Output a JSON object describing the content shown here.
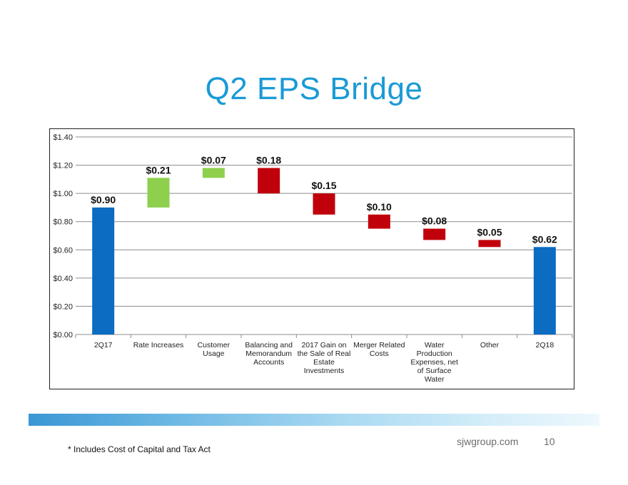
{
  "slide": {
    "title": "Q2 EPS Bridge",
    "site": "sjwgroup.com",
    "page_number": "10",
    "footnote": "* Includes Cost of Capital and Tax Act"
  },
  "chart_data": {
    "type": "bar",
    "subtype": "waterfall",
    "title": "",
    "ylim": [
      0,
      1.4
    ],
    "ytick_step": 0.2,
    "yticks": [
      "$0.00",
      "$0.20",
      "$0.40",
      "$0.60",
      "$0.80",
      "$1.00",
      "$1.20",
      "$1.40"
    ],
    "grid": true,
    "colors": {
      "total": "#0b6cc2",
      "increase": "#8ed04d",
      "decrease": "#c0000b"
    },
    "categories": [
      {
        "label_lines": [
          "2Q17"
        ],
        "value": 0.9,
        "kind": "total",
        "data_label": "$0.90"
      },
      {
        "label_lines": [
          "Rate Increases"
        ],
        "value": 0.21,
        "kind": "increase",
        "data_label": "$0.21"
      },
      {
        "label_lines": [
          "Customer",
          "Usage"
        ],
        "value": 0.07,
        "kind": "increase",
        "data_label": "$0.07"
      },
      {
        "label_lines": [
          "Balancing and",
          "Memorandum",
          "Accounts"
        ],
        "value": -0.18,
        "kind": "decrease",
        "data_label": "$0.18"
      },
      {
        "label_lines": [
          "2017 Gain on",
          "the Sale of Real",
          "Estate",
          "Investments"
        ],
        "value": -0.15,
        "kind": "decrease",
        "data_label": "$0.15"
      },
      {
        "label_lines": [
          "Merger Related",
          "Costs"
        ],
        "value": -0.1,
        "kind": "decrease",
        "data_label": "$0.10"
      },
      {
        "label_lines": [
          "Water",
          "Production",
          "Expenses, net",
          "of Surface",
          "Water"
        ],
        "value": -0.08,
        "kind": "decrease",
        "data_label": "$0.08"
      },
      {
        "label_lines": [
          "Other"
        ],
        "value": -0.05,
        "kind": "decrease",
        "data_label": "$0.05"
      },
      {
        "label_lines": [
          "2Q18"
        ],
        "value": 0.62,
        "kind": "total",
        "data_label": "$0.62"
      }
    ]
  }
}
